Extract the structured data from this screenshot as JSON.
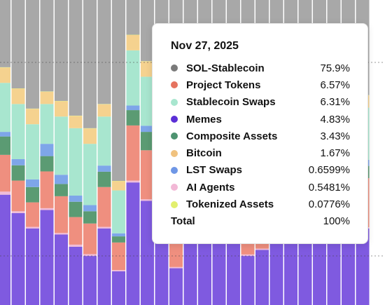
{
  "chart_data": {
    "type": "bar",
    "stacked": true,
    "normalized": true,
    "ylim": [
      0,
      100
    ],
    "grid": "dashed horizontal",
    "series": [
      {
        "name": "Memes",
        "color": "#7f5ae0",
        "values": [
          36,
          30,
          25,
          31,
          23,
          19,
          16,
          25,
          11,
          40,
          34,
          28,
          12,
          30,
          31,
          22,
          24,
          16,
          18,
          29,
          27,
          22,
          30,
          29,
          20,
          25
        ]
      },
      {
        "name": "AI Agents",
        "color": "#f0bcd9",
        "values": [
          1,
          0.6,
          0.5,
          0.6,
          0.5,
          0.7,
          0.6,
          0.5,
          0.4,
          0.6,
          0.5,
          0.5,
          0.4,
          0.5,
          0.6,
          0.5,
          0.5,
          0.5,
          0.4,
          0.6,
          0.5,
          0.5,
          0.6,
          0.5,
          0.5,
          0.4
        ]
      },
      {
        "name": "Project Tokens",
        "color": "#ef8f7f",
        "values": [
          12,
          10,
          8,
          12,
          12,
          9,
          10,
          13,
          9,
          18,
          16,
          15,
          16,
          20,
          22,
          20,
          14,
          25,
          21,
          14,
          15,
          19,
          18,
          17,
          22,
          16
        ]
      },
      {
        "name": "Composite Assets",
        "color": "#5b9b73",
        "values": [
          6,
          5,
          5,
          5,
          4,
          5,
          4,
          5,
          2,
          5,
          6,
          4,
          5,
          5,
          5,
          4,
          5,
          4,
          4,
          5,
          4,
          5,
          5,
          5,
          4,
          4
        ]
      },
      {
        "name": "LST Swaps",
        "color": "#7ea6e9",
        "values": [
          1.5,
          2,
          2.5,
          4,
          3,
          2,
          2,
          2,
          1,
          1.5,
          2,
          2,
          1.5,
          2,
          2,
          2,
          2,
          2,
          2,
          2,
          2,
          2,
          2,
          2,
          1.5,
          2
        ]
      },
      {
        "name": "Stablecoin Swaps",
        "color": "#a8e6cf",
        "values": [
          16,
          18,
          18,
          13,
          19,
          22,
          20,
          16,
          14,
          18,
          16,
          19,
          15,
          17,
          18,
          15,
          16,
          17,
          15,
          18,
          16,
          17,
          16,
          18,
          20,
          17
        ]
      },
      {
        "name": "Bitcoin",
        "color": "#f5d28f",
        "values": [
          5,
          5,
          5,
          4,
          5,
          4,
          5,
          4,
          3,
          5,
          5,
          4,
          4,
          5,
          4,
          5,
          4,
          4,
          5,
          4,
          5,
          4,
          4,
          5,
          5,
          4
        ]
      },
      {
        "name": "Tokenized Assets",
        "color": "#dff07a",
        "values": [
          0.1,
          0.1,
          0.1,
          0.1,
          0.1,
          0.1,
          0.1,
          0.1,
          0.1,
          0.1,
          0.1,
          0.1,
          0.1,
          0.1,
          0.1,
          0.1,
          0.1,
          0.1,
          0.1,
          0.1,
          0.1,
          0.1,
          0.1,
          0.1,
          0.1,
          0.1
        ]
      },
      {
        "name": "SOL-Stablecoin",
        "color": "#a8a8a8",
        "values": [
          22.4,
          29.3,
          35.9,
          30.3,
          33.4,
          38.2,
          42.3,
          34.4,
          59.5,
          11.8,
          20.4,
          27.4,
          46,
          20.4,
          17.4,
          31.4,
          34.4,
          31.4,
          34.5,
          27.3,
          30.4,
          30.4,
          24.3,
          23.4,
          27,
          31.5
        ]
      }
    ],
    "tooltip": {
      "date": "Nov 27, 2025",
      "rows": [
        {
          "name": "SOL-Stablecoin",
          "value": "75.9%",
          "color": "#7a7a7a"
        },
        {
          "name": "Project Tokens",
          "value": "6.57%",
          "color": "#e5735f"
        },
        {
          "name": "Stablecoin Swaps",
          "value": "6.31%",
          "color": "#a8e6cf"
        },
        {
          "name": "Memes",
          "value": "4.83%",
          "color": "#5b2fd6"
        },
        {
          "name": "Composite Assets",
          "value": "3.43%",
          "color": "#4e9370"
        },
        {
          "name": "Bitcoin",
          "value": "1.67%",
          "color": "#f0c27f"
        },
        {
          "name": "LST Swaps",
          "value": "0.6599%",
          "color": "#6f97e6"
        },
        {
          "name": "AI Agents",
          "value": "0.5481%",
          "color": "#f2b8d6"
        },
        {
          "name": "Tokenized Assets",
          "value": "0.0776%",
          "color": "#e2ef6e"
        }
      ],
      "total_label": "Total",
      "total_value": "100%"
    }
  }
}
